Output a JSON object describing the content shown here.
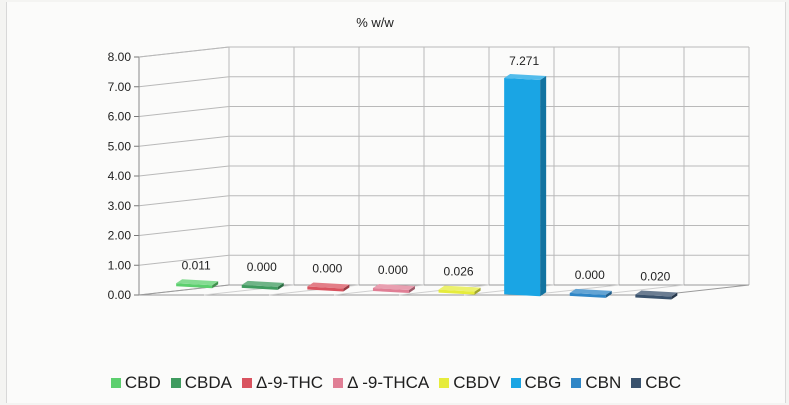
{
  "chart_data": {
    "type": "bar",
    "title": "% w/w",
    "categories": [
      "CBD",
      "CBDA",
      "Δ-9-THC",
      "Δ -9-THCA",
      "CBDV",
      "CBG",
      "CBN",
      "CBC"
    ],
    "values": [
      0.011,
      0.0,
      0.0,
      0.0,
      0.026,
      7.271,
      0.0,
      0.02
    ],
    "data_labels": [
      "0.011",
      "0.000",
      "0.000",
      "0.000",
      "0.026",
      "7.271",
      "0.000",
      "0.020"
    ],
    "colors": [
      "#5ccf6e",
      "#3f9b5f",
      "#d9535f",
      "#e07f95",
      "#e6ec3c",
      "#1aa5e4",
      "#2f86c6",
      "#39526d"
    ],
    "y_ticks": [
      "0.00",
      "1.00",
      "2.00",
      "3.00",
      "4.00",
      "5.00",
      "6.00",
      "7.00",
      "8.00"
    ],
    "ylim": [
      0,
      8
    ],
    "grid": true,
    "legend_position": "bottom",
    "xlabel": "",
    "ylabel": ""
  }
}
